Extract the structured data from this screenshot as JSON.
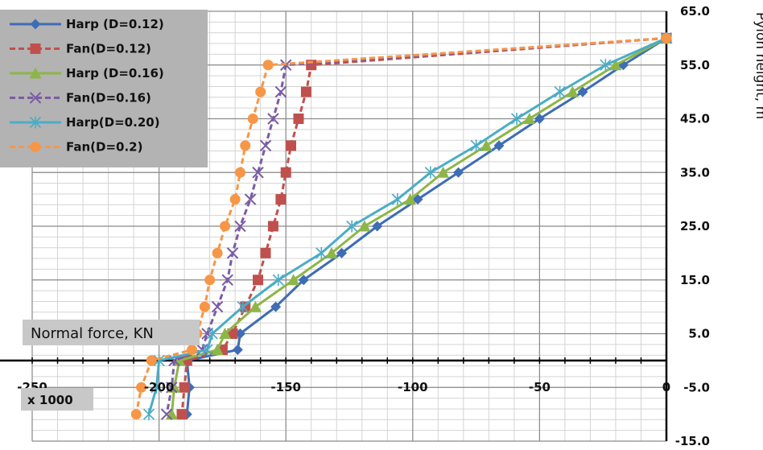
{
  "chart_data": {
    "type": "line",
    "title": "",
    "xlabel": "Normal force, KN",
    "x_multiplier_label": "x 1000",
    "ylabel": "Pylon height, m",
    "xlim": [
      -250,
      0
    ],
    "ylim": [
      -15,
      65
    ],
    "x_ticks": [
      -250,
      -200,
      -150,
      -100,
      -50,
      0
    ],
    "x_tick_labels": [
      "-250",
      "-200",
      "-150",
      "-100",
      "-50",
      "0"
    ],
    "y_ticks": [
      -15,
      -5,
      5,
      15,
      25,
      35,
      45,
      55,
      65
    ],
    "y_tick_labels": [
      "-15.0",
      "-5.0",
      "5.0",
      "15.0",
      "25.0",
      "35.0",
      "45.0",
      "55.0",
      "65.0"
    ],
    "grid": true,
    "legend_position": "top-left",
    "series": [
      {
        "name": "Harp (D=0.12)",
        "color": "#3E6DB5",
        "dash": "solid",
        "marker": "diamond",
        "points": [
          [
            0,
            60
          ],
          [
            -17,
            55
          ],
          [
            -33,
            50
          ],
          [
            -50,
            45
          ],
          [
            -66,
            40
          ],
          [
            -82,
            35
          ],
          [
            -98,
            30
          ],
          [
            -114,
            25
          ],
          [
            -128,
            20
          ],
          [
            -143,
            15
          ],
          [
            -154,
            10
          ],
          [
            -168,
            5
          ],
          [
            -169,
            2
          ],
          [
            -189,
            0
          ],
          [
            -188,
            -5
          ],
          [
            -189,
            -10
          ]
        ]
      },
      {
        "name": "Fan(D=0.12)",
        "color": "#C0504D",
        "dash": "dashed",
        "marker": "square",
        "points": [
          [
            0,
            60
          ],
          [
            -140,
            55
          ],
          [
            -142,
            50
          ],
          [
            -145,
            45
          ],
          [
            -148,
            40
          ],
          [
            -150,
            35
          ],
          [
            -152,
            30
          ],
          [
            -155,
            25
          ],
          [
            -158,
            20
          ],
          [
            -161,
            15
          ],
          [
            -166,
            10
          ],
          [
            -171,
            5
          ],
          [
            -175,
            2
          ],
          [
            -189,
            0
          ],
          [
            -190,
            -5
          ],
          [
            -191,
            -10
          ]
        ]
      },
      {
        "name": "Harp (D=0.16)",
        "color": "#8DB646",
        "dash": "solid",
        "marker": "triangle",
        "points": [
          [
            0,
            60
          ],
          [
            -20,
            55
          ],
          [
            -37,
            50
          ],
          [
            -54,
            45
          ],
          [
            -71,
            40
          ],
          [
            -88,
            35
          ],
          [
            -101,
            30
          ],
          [
            -119,
            25
          ],
          [
            -132,
            20
          ],
          [
            -147,
            15
          ],
          [
            -162,
            10
          ],
          [
            -174,
            5
          ],
          [
            -177,
            2
          ],
          [
            -192,
            0
          ],
          [
            -194,
            -5
          ],
          [
            -195,
            -10
          ]
        ]
      },
      {
        "name": "Fan(D=0.16)",
        "color": "#7B5BA6",
        "dash": "dashed",
        "marker": "x",
        "points": [
          [
            0,
            60
          ],
          [
            -150,
            55
          ],
          [
            -152,
            50
          ],
          [
            -155,
            45
          ],
          [
            -158,
            40
          ],
          [
            -161,
            35
          ],
          [
            -164,
            30
          ],
          [
            -168,
            25
          ],
          [
            -171,
            20
          ],
          [
            -173,
            15
          ],
          [
            -177,
            10
          ],
          [
            -181,
            5
          ],
          [
            -183,
            2
          ],
          [
            -194,
            0
          ],
          [
            -195,
            -5
          ],
          [
            -197,
            -10
          ]
        ]
      },
      {
        "name": "Harp(D=0.20)",
        "color": "#4BACC6",
        "dash": "solid",
        "marker": "star",
        "points": [
          [
            0,
            60
          ],
          [
            -24,
            55
          ],
          [
            -42,
            50
          ],
          [
            -59,
            45
          ],
          [
            -75,
            40
          ],
          [
            -93,
            35
          ],
          [
            -106,
            30
          ],
          [
            -124,
            25
          ],
          [
            -136,
            20
          ],
          [
            -153,
            15
          ],
          [
            -167,
            10
          ],
          [
            -179,
            5
          ],
          [
            -181,
            2
          ],
          [
            -200,
            0
          ],
          [
            -201,
            -5
          ],
          [
            -204,
            -10
          ]
        ]
      },
      {
        "name": "Fan(D=0.2)",
        "color": "#F79646",
        "dash": "dashed",
        "marker": "circle",
        "points": [
          [
            0,
            60
          ],
          [
            -157,
            55
          ],
          [
            -160,
            50
          ],
          [
            -163,
            45
          ],
          [
            -166,
            40
          ],
          [
            -168,
            35
          ],
          [
            -170,
            30
          ],
          [
            -174,
            25
          ],
          [
            -177,
            20
          ],
          [
            -180,
            15
          ],
          [
            -182,
            10
          ],
          [
            -185,
            5
          ],
          [
            -187,
            2
          ],
          [
            -203,
            0
          ],
          [
            -207,
            -5
          ],
          [
            -209,
            -10
          ]
        ]
      }
    ]
  }
}
